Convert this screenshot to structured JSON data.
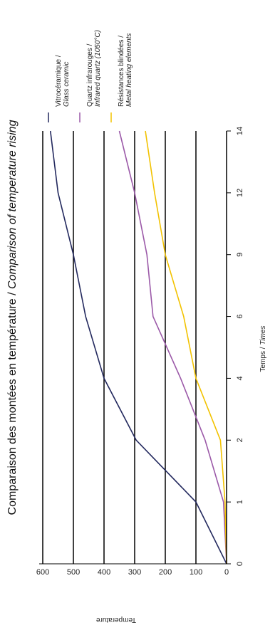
{
  "chart_data": {
    "type": "line",
    "title_fr": "Comparaison des montées en température / ",
    "title_en": "Comparison of temperature rising",
    "xlabel_fr": "Temps / ",
    "xlabel_en": "Times",
    "ylabel": "Temperature",
    "x_ticks": [
      "0",
      "1",
      "2",
      "4",
      "6",
      "9",
      "12",
      "14"
    ],
    "y_ticks": [
      0,
      100,
      200,
      300,
      400,
      500,
      600
    ],
    "ylim": [
      0,
      600
    ],
    "grid": true,
    "orientation": "rotated 90° clockwise",
    "legend_position": "top",
    "series": [
      {
        "name_fr": "Vitrocéramique /",
        "name_en": "Glass ceramic",
        "color": "#23295e",
        "points": [
          [
            "0",
            0
          ],
          [
            "1",
            100
          ],
          [
            "2",
            295
          ],
          [
            "4",
            400
          ],
          [
            "6",
            460
          ],
          [
            "9",
            500
          ],
          [
            "12",
            550
          ],
          [
            "14",
            575
          ]
        ]
      },
      {
        "name_fr": "Quartz infrarouges /",
        "name_en": "Infrared quartz (1050°C)",
        "color": "#9b59a8",
        "points": [
          [
            "0",
            0
          ],
          [
            "1",
            10
          ],
          [
            "2",
            70
          ],
          [
            "4",
            150
          ],
          [
            "6",
            240
          ],
          [
            "9",
            260
          ],
          [
            "12",
            300
          ],
          [
            "14",
            350
          ]
        ]
      },
      {
        "name_fr": "Résistances blindées /",
        "name_en": "Metal heating elements",
        "color": "#f2c200",
        "points": [
          [
            "0",
            0
          ],
          [
            "1",
            5
          ],
          [
            "2",
            20
          ],
          [
            "4",
            100
          ],
          [
            "6",
            140
          ],
          [
            "9",
            200
          ],
          [
            "12",
            235
          ],
          [
            "14",
            265
          ]
        ]
      }
    ]
  }
}
